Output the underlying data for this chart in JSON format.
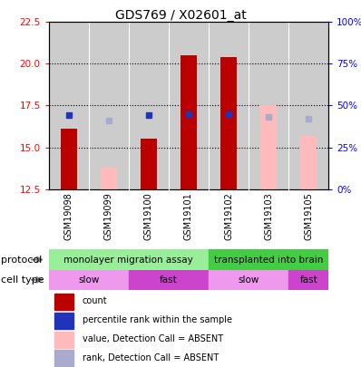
{
  "title": "GDS769 / X02601_at",
  "samples": [
    "GSM19098",
    "GSM19099",
    "GSM19100",
    "GSM19101",
    "GSM19102",
    "GSM19103",
    "GSM19105"
  ],
  "ylim_left": [
    12.5,
    22.5
  ],
  "ylim_right": [
    0,
    100
  ],
  "yticks_left": [
    12.5,
    15.0,
    17.5,
    20.0,
    22.5
  ],
  "yticks_right": [
    0,
    25,
    50,
    75,
    100
  ],
  "ytick_labels_right": [
    "0%",
    "25%",
    "50%",
    "75%",
    "100%"
  ],
  "bar_base": 12.5,
  "count_values": [
    16.1,
    null,
    15.5,
    20.5,
    20.4,
    null,
    null
  ],
  "rank_values": [
    16.9,
    null,
    16.9,
    17.0,
    17.0,
    null,
    null
  ],
  "count_absent": [
    null,
    13.8,
    null,
    null,
    null,
    17.5,
    15.7
  ],
  "rank_absent": [
    null,
    16.6,
    null,
    null,
    null,
    16.8,
    16.7
  ],
  "count_color": "#bb0000",
  "rank_color": "#2233bb",
  "count_absent_color": "#ffbbbb",
  "rank_absent_color": "#aaaacc",
  "protocol_groups": [
    {
      "label": "monolayer migration assay",
      "samples": [
        0,
        1,
        2,
        3
      ],
      "color": "#99ee99"
    },
    {
      "label": "transplanted into brain",
      "samples": [
        4,
        5,
        6
      ],
      "color": "#44cc44"
    }
  ],
  "cell_type_groups": [
    {
      "label": "slow",
      "samples": [
        0,
        1
      ],
      "color": "#ee99ee"
    },
    {
      "label": "fast",
      "samples": [
        2,
        3
      ],
      "color": "#cc44cc"
    },
    {
      "label": "slow",
      "samples": [
        4,
        5
      ],
      "color": "#ee99ee"
    },
    {
      "label": "fast",
      "samples": [
        6
      ],
      "color": "#cc44cc"
    }
  ],
  "bar_width": 0.4,
  "legend_items": [
    {
      "label": "count",
      "color": "#bb0000"
    },
    {
      "label": "percentile rank within the sample",
      "color": "#2233bb"
    },
    {
      "label": "value, Detection Call = ABSENT",
      "color": "#ffbbbb"
    },
    {
      "label": "rank, Detection Call = ABSENT",
      "color": "#aaaacc"
    }
  ],
  "plot_bg": "#cccccc",
  "title_fontsize": 10,
  "tick_fontsize": 7.5,
  "label_fontsize": 8,
  "group_label_fontsize": 8
}
